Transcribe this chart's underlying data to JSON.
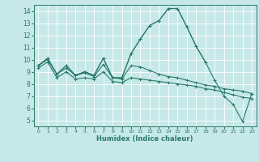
{
  "xlabel": "Humidex (Indice chaleur)",
  "xlim": [
    -0.5,
    23.5
  ],
  "ylim": [
    4.5,
    14.5
  ],
  "xticks": [
    0,
    1,
    2,
    3,
    4,
    5,
    6,
    7,
    8,
    9,
    10,
    11,
    12,
    13,
    14,
    15,
    16,
    17,
    18,
    19,
    20,
    21,
    22,
    23
  ],
  "yticks": [
    5,
    6,
    7,
    8,
    9,
    10,
    11,
    12,
    13,
    14
  ],
  "bg_color": "#c6e8e8",
  "grid_color": "#ffffff",
  "line_color": "#2a7a6a",
  "line1_y": [
    9.5,
    10.1,
    8.8,
    9.5,
    8.7,
    9.0,
    8.7,
    10.1,
    8.5,
    8.5,
    10.5,
    11.7,
    12.8,
    13.2,
    14.2,
    14.2,
    12.7,
    11.1,
    9.8,
    null,
    null,
    null,
    null,
    null
  ],
  "line2_y": [
    9.5,
    10.1,
    8.8,
    9.5,
    8.7,
    9.0,
    8.7,
    10.1,
    8.5,
    8.5,
    10.5,
    11.7,
    12.8,
    13.2,
    14.2,
    14.2,
    12.7,
    11.1,
    9.8,
    8.3,
    7.0,
    6.3,
    4.9,
    7.2
  ],
  "line3_y": [
    9.5,
    10.0,
    8.8,
    9.3,
    8.7,
    8.9,
    8.6,
    9.6,
    8.5,
    8.4,
    9.5,
    9.4,
    9.1,
    8.8,
    8.6,
    8.5,
    8.3,
    8.1,
    7.9,
    7.8,
    7.6,
    7.5,
    7.4,
    7.2
  ],
  "line4_y": [
    9.3,
    9.8,
    8.5,
    9.0,
    8.4,
    8.5,
    8.4,
    9.0,
    8.2,
    8.1,
    8.5,
    8.4,
    8.3,
    8.2,
    8.1,
    8.0,
    7.9,
    7.8,
    7.6,
    7.5,
    7.3,
    7.1,
    6.9,
    6.8
  ]
}
